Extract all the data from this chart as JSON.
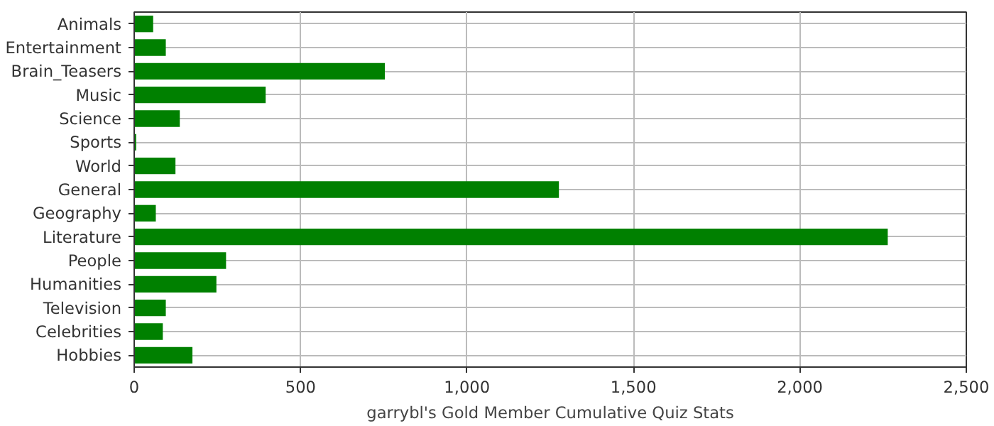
{
  "chart_data": {
    "type": "bar",
    "orientation": "horizontal",
    "xlabel": "garrybl's Gold Member Cumulative Quiz Stats",
    "categories": [
      "Animals",
      "Entertainment",
      "Brain_Teasers",
      "Music",
      "Science",
      "Sports",
      "World",
      "General",
      "Geography",
      "Literature",
      "People",
      "Humanities",
      "Television",
      "Celebrities",
      "Hobbies"
    ],
    "values": [
      57,
      95,
      753,
      395,
      137,
      6,
      124,
      1276,
      65,
      2264,
      276,
      247,
      95,
      86,
      175
    ],
    "color": "#008000",
    "xlim": [
      0,
      2500
    ],
    "xticks": [
      0,
      {
        "value": 500,
        "label": "500"
      },
      {
        "value": 1000,
        "label": "1,000"
      },
      {
        "value": 1500,
        "label": "1,500"
      },
      {
        "value": 2000,
        "label": "2,000"
      },
      {
        "value": 2500,
        "label": "2,500"
      }
    ],
    "grid": true
  }
}
